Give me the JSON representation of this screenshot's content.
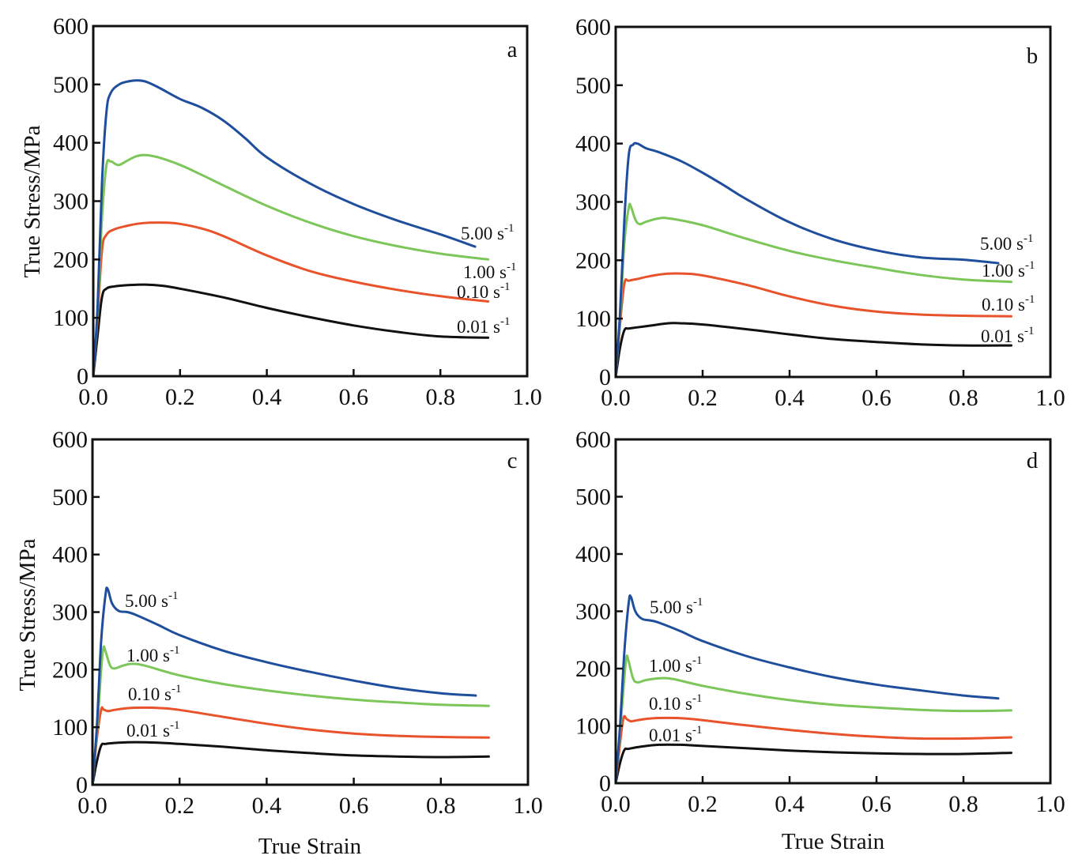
{
  "chart_data": [
    {
      "type": "line",
      "panel": "a",
      "xlabel": "",
      "ylabel": "True Stress/MPa",
      "xlim": [
        0.0,
        1.0
      ],
      "ylim": [
        0,
        600
      ],
      "xticks": [
        "0.0",
        "0.2",
        "0.4",
        "0.6",
        "0.8",
        "1.0"
      ],
      "yticks": [
        "0",
        "100",
        "200",
        "300",
        "400",
        "500",
        "600"
      ],
      "grid": false,
      "series": [
        {
          "name": "5.00 s-1",
          "label": "5.00 s",
          "sup": "-1",
          "color": "#1f4e9c",
          "x": [
            0,
            0.01,
            0.02,
            0.03,
            0.04,
            0.06,
            0.08,
            0.1,
            0.12,
            0.15,
            0.2,
            0.25,
            0.3,
            0.35,
            0.4,
            0.5,
            0.6,
            0.7,
            0.8,
            0.88
          ],
          "y": [
            0,
            120,
            330,
            450,
            485,
            500,
            505,
            507,
            505,
            495,
            475,
            460,
            438,
            408,
            375,
            330,
            295,
            267,
            243,
            222
          ]
        },
        {
          "name": "1.00 s-1",
          "label": "1.00 s",
          "sup": "-1",
          "color": "#7cc65a",
          "x": [
            0,
            0.01,
            0.02,
            0.03,
            0.04,
            0.05,
            0.06,
            0.08,
            0.1,
            0.12,
            0.15,
            0.2,
            0.25,
            0.3,
            0.4,
            0.5,
            0.6,
            0.7,
            0.8,
            0.91
          ],
          "y": [
            0,
            110,
            270,
            360,
            368,
            364,
            362,
            370,
            377,
            379,
            375,
            362,
            345,
            327,
            292,
            263,
            240,
            223,
            210,
            200
          ]
        },
        {
          "name": "0.10 s-1",
          "label": "0.10 s",
          "sup": "-1",
          "color": "#e8532b",
          "x": [
            0,
            0.01,
            0.02,
            0.03,
            0.05,
            0.08,
            0.1,
            0.13,
            0.17,
            0.2,
            0.25,
            0.3,
            0.4,
            0.5,
            0.6,
            0.7,
            0.8,
            0.91
          ],
          "y": [
            0,
            100,
            215,
            242,
            252,
            258,
            261,
            263,
            263,
            261,
            253,
            240,
            207,
            180,
            162,
            148,
            137,
            128
          ]
        },
        {
          "name": "0.01 s-1",
          "label": "0.01 s",
          "sup": "-1",
          "color": "#111111",
          "x": [
            0,
            0.01,
            0.02,
            0.03,
            0.05,
            0.08,
            0.12,
            0.16,
            0.2,
            0.3,
            0.4,
            0.5,
            0.6,
            0.7,
            0.8,
            0.91
          ],
          "y": [
            0,
            70,
            135,
            150,
            154,
            156,
            157,
            155,
            150,
            135,
            117,
            101,
            87,
            76,
            68,
            66
          ]
        }
      ]
    },
    {
      "type": "line",
      "panel": "b",
      "xlabel": "",
      "ylabel": "",
      "xlim": [
        0.0,
        1.0
      ],
      "ylim": [
        0,
        600
      ],
      "xticks": [
        "0.0",
        "0.2",
        "0.4",
        "0.6",
        "0.8",
        "1.0"
      ],
      "yticks": [
        "0",
        "100",
        "200",
        "300",
        "400",
        "500",
        "600"
      ],
      "grid": false,
      "series": [
        {
          "name": "5.00 s-1",
          "label": "5.00 s",
          "sup": "-1",
          "color": "#1f4e9c",
          "x": [
            0,
            0.01,
            0.02,
            0.03,
            0.04,
            0.05,
            0.07,
            0.1,
            0.15,
            0.2,
            0.25,
            0.3,
            0.4,
            0.5,
            0.6,
            0.7,
            0.8,
            0.88
          ],
          "y": [
            0,
            110,
            270,
            380,
            398,
            400,
            392,
            385,
            370,
            350,
            328,
            305,
            265,
            236,
            217,
            205,
            201,
            195
          ]
        },
        {
          "name": "1.00 s-1",
          "label": "1.00 s",
          "sup": "-1",
          "color": "#7cc65a",
          "x": [
            0,
            0.01,
            0.02,
            0.03,
            0.035,
            0.045,
            0.055,
            0.07,
            0.1,
            0.13,
            0.2,
            0.3,
            0.4,
            0.5,
            0.6,
            0.7,
            0.8,
            0.91
          ],
          "y": [
            0,
            100,
            230,
            290,
            292,
            270,
            262,
            266,
            272,
            271,
            260,
            237,
            216,
            200,
            187,
            175,
            167,
            163
          ]
        },
        {
          "name": "0.10 s-1",
          "label": "0.10 s",
          "sup": "-1",
          "color": "#e8532b",
          "x": [
            0,
            0.01,
            0.02,
            0.03,
            0.05,
            0.08,
            0.12,
            0.16,
            0.2,
            0.3,
            0.4,
            0.5,
            0.6,
            0.7,
            0.8,
            0.91
          ],
          "y": [
            0,
            90,
            160,
            165,
            168,
            173,
            177,
            177,
            174,
            158,
            138,
            122,
            112,
            107,
            105,
            104
          ]
        },
        {
          "name": "0.01 s-1",
          "label": "0.01 s",
          "sup": "-1",
          "color": "#111111",
          "x": [
            0,
            0.01,
            0.02,
            0.03,
            0.05,
            0.08,
            0.12,
            0.15,
            0.2,
            0.3,
            0.4,
            0.5,
            0.6,
            0.7,
            0.8,
            0.91
          ],
          "y": [
            0,
            50,
            80,
            83,
            85,
            88,
            92,
            92,
            90,
            82,
            73,
            65,
            60,
            56,
            54,
            54
          ]
        }
      ]
    },
    {
      "type": "line",
      "panel": "c",
      "xlabel": "True Strain",
      "ylabel": "True Stress/MPa",
      "xlim": [
        0.0,
        1.0
      ],
      "ylim": [
        0,
        600
      ],
      "xticks": [
        "0.0",
        "0.2",
        "0.4",
        "0.6",
        "0.8",
        "1.0"
      ],
      "yticks": [
        "0",
        "100",
        "200",
        "300",
        "400",
        "500",
        "600"
      ],
      "grid": false,
      "series": [
        {
          "name": "5.00 s-1",
          "label": "5.00 s",
          "sup": "-1",
          "color": "#1f4e9c",
          "x": [
            0,
            0.01,
            0.02,
            0.03,
            0.035,
            0.045,
            0.06,
            0.08,
            0.1,
            0.15,
            0.2,
            0.3,
            0.4,
            0.5,
            0.6,
            0.7,
            0.8,
            0.88
          ],
          "y": [
            0,
            100,
            250,
            330,
            340,
            315,
            302,
            300,
            295,
            278,
            260,
            233,
            213,
            196,
            181,
            168,
            159,
            155
          ]
        },
        {
          "name": "1.00 s-1",
          "label": "1.00 s",
          "sup": "-1",
          "color": "#7cc65a",
          "x": [
            0,
            0.01,
            0.02,
            0.025,
            0.03,
            0.04,
            0.05,
            0.07,
            0.09,
            0.12,
            0.2,
            0.3,
            0.4,
            0.5,
            0.6,
            0.7,
            0.8,
            0.91
          ],
          "y": [
            0,
            90,
            200,
            238,
            232,
            208,
            202,
            207,
            210,
            207,
            190,
            175,
            164,
            155,
            148,
            143,
            139,
            137
          ]
        },
        {
          "name": "0.10 s-1",
          "label": "0.10 s",
          "sup": "-1",
          "color": "#e8532b",
          "x": [
            0,
            0.01,
            0.02,
            0.025,
            0.035,
            0.05,
            0.08,
            0.12,
            0.16,
            0.2,
            0.3,
            0.4,
            0.5,
            0.6,
            0.7,
            0.8,
            0.91
          ],
          "y": [
            0,
            80,
            130,
            131,
            128,
            130,
            133,
            134,
            133,
            130,
            118,
            106,
            96,
            89,
            85,
            83,
            82
          ]
        },
        {
          "name": "0.01 s-1",
          "label": "0.01 s",
          "sup": "-1",
          "color": "#111111",
          "x": [
            0,
            0.01,
            0.02,
            0.03,
            0.06,
            0.1,
            0.15,
            0.2,
            0.3,
            0.4,
            0.5,
            0.6,
            0.7,
            0.8,
            0.91
          ],
          "y": [
            0,
            40,
            68,
            71,
            73,
            74,
            73,
            71,
            66,
            60,
            55,
            51,
            49,
            48,
            49
          ]
        }
      ]
    },
    {
      "type": "line",
      "panel": "d",
      "xlabel": "True Strain",
      "ylabel": "",
      "xlim": [
        0.0,
        1.0
      ],
      "ylim": [
        0,
        600
      ],
      "xticks": [
        "0.0",
        "0.2",
        "0.4",
        "0.6",
        "0.8",
        "1.0"
      ],
      "yticks": [
        "0",
        "100",
        "200",
        "300",
        "400",
        "500",
        "600"
      ],
      "grid": false,
      "series": [
        {
          "name": "5.00 s-1",
          "label": "5.00 s",
          "sup": "-1",
          "color": "#1f4e9c",
          "x": [
            0,
            0.01,
            0.02,
            0.03,
            0.035,
            0.045,
            0.06,
            0.08,
            0.1,
            0.15,
            0.2,
            0.3,
            0.4,
            0.5,
            0.6,
            0.7,
            0.8,
            0.88
          ],
          "y": [
            0,
            100,
            230,
            315,
            325,
            300,
            287,
            284,
            280,
            265,
            248,
            222,
            202,
            185,
            172,
            162,
            153,
            148
          ]
        },
        {
          "name": "1.00 s-1",
          "label": "1.00 s",
          "sup": "-1",
          "color": "#7cc65a",
          "x": [
            0,
            0.01,
            0.02,
            0.025,
            0.03,
            0.04,
            0.05,
            0.07,
            0.1,
            0.13,
            0.2,
            0.3,
            0.4,
            0.5,
            0.6,
            0.7,
            0.8,
            0.91
          ],
          "y": [
            0,
            90,
            185,
            221,
            212,
            183,
            176,
            180,
            183,
            182,
            170,
            156,
            145,
            137,
            132,
            128,
            126,
            127
          ]
        },
        {
          "name": "0.10 s-1",
          "label": "0.10 s",
          "sup": "-1",
          "color": "#e8532b",
          "x": [
            0,
            0.01,
            0.018,
            0.025,
            0.035,
            0.05,
            0.08,
            0.12,
            0.16,
            0.2,
            0.3,
            0.4,
            0.5,
            0.6,
            0.7,
            0.8,
            0.91
          ],
          "y": [
            0,
            70,
            114,
            112,
            108,
            110,
            113,
            114,
            113,
            110,
            101,
            93,
            86,
            81,
            78,
            78,
            80
          ]
        },
        {
          "name": "0.01 s-1",
          "label": "0.01 s",
          "sup": "-1",
          "color": "#111111",
          "x": [
            0,
            0.01,
            0.02,
            0.03,
            0.06,
            0.1,
            0.15,
            0.2,
            0.3,
            0.4,
            0.5,
            0.6,
            0.7,
            0.8,
            0.91
          ],
          "y": [
            0,
            35,
            58,
            60,
            64,
            67,
            67,
            65,
            61,
            57,
            54,
            52,
            51,
            51,
            53
          ]
        }
      ]
    }
  ]
}
